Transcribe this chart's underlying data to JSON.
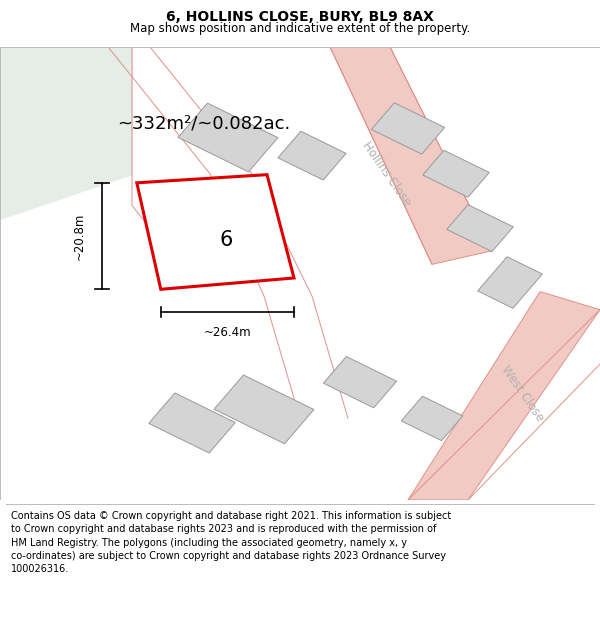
{
  "title": "6, HOLLINS CLOSE, BURY, BL9 8AX",
  "subtitle": "Map shows position and indicative extent of the property.",
  "footer": "Contains OS data © Crown copyright and database right 2021. This information is subject\nto Crown copyright and database rights 2023 and is reproduced with the permission of\nHM Land Registry. The polygons (including the associated geometry, namely x, y\nco-ordinates) are subject to Crown copyright and database rights 2023 Ordnance Survey\n100026316.",
  "map_bg": "#f8f8f6",
  "green_color": "#e6ede6",
  "property_label": "6",
  "area_text": "~332m²/~0.082ac.",
  "dim_width": "~26.4m",
  "dim_height": "~20.8m",
  "road_color": "#f2cac4",
  "building_color": "#d4d4d4",
  "road_outline": "#e09088",
  "highlight_color": "#dd0000",
  "street_label_hollins": "Hollins Close",
  "street_label_west": "West Close",
  "title_fontsize": 10,
  "subtitle_fontsize": 8.5,
  "footer_fontsize": 7
}
